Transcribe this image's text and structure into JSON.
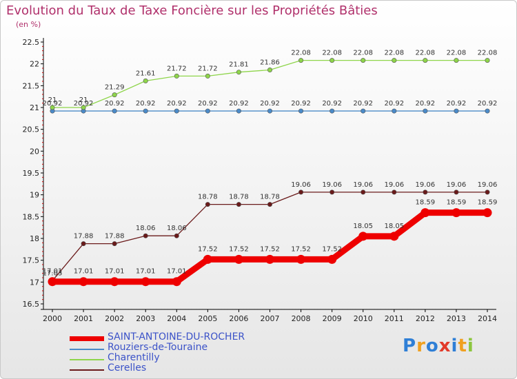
{
  "chart_data": {
    "type": "line",
    "title": "Evolution du Taux de Taxe Foncière sur les Propriétés Bâties",
    "unit_label": "(en %)",
    "x": [
      "2000",
      "2001",
      "2002",
      "2003",
      "2004",
      "2005",
      "2006",
      "2007",
      "2008",
      "2009",
      "2010",
      "2011",
      "2012",
      "2013",
      "2014"
    ],
    "ylim": [
      16.5,
      22.5
    ],
    "yticks": [
      "16.5",
      "17",
      "17.5",
      "18",
      "18.5",
      "19",
      "19.5",
      "20",
      "20.5",
      "21",
      "21.5",
      "22",
      "22.5"
    ],
    "grid": false,
    "legend_position": "bottom-left",
    "series": [
      {
        "name": "SAINT-ANTOINE-DU-ROCHER",
        "color": "#ee0000",
        "values": [
          17.01,
          17.01,
          17.01,
          17.01,
          17.01,
          17.52,
          17.52,
          17.52,
          17.52,
          17.52,
          18.05,
          18.05,
          18.59,
          18.59,
          18.59
        ],
        "labels": [
          "17.01",
          "17.01",
          "17.01",
          "17.01",
          "17.01",
          "17.52",
          "17.52",
          "17.52",
          "17.52",
          "17.52",
          "18.05",
          "18.05",
          "18.59",
          "18.59",
          "18.59"
        ]
      },
      {
        "name": "Rouziers-de-Touraine",
        "color": "#4a8ac8",
        "values": [
          20.92,
          20.92,
          20.92,
          20.92,
          20.92,
          20.92,
          20.92,
          20.92,
          20.92,
          20.92,
          20.92,
          20.92,
          20.92,
          20.92,
          20.92
        ],
        "labels": [
          "20.92",
          "20.92",
          "20.92",
          "20.92",
          "20.92",
          "20.92",
          "20.92",
          "20.92",
          "20.92",
          "20.92",
          "20.92",
          "20.92",
          "20.92",
          "20.92",
          "20.92"
        ]
      },
      {
        "name": "Charentilly",
        "color": "#8ed54a",
        "values": [
          21,
          21,
          21.29,
          21.61,
          21.72,
          21.72,
          21.81,
          21.86,
          22.08,
          22.08,
          22.08,
          22.08,
          22.08,
          22.08,
          22.08
        ],
        "labels": [
          "21",
          "21",
          "21.29",
          "21.61",
          "21.72",
          "21.72",
          "21.81",
          "21.86",
          "22.08",
          "22.08",
          "22.08",
          "22.08",
          "22.08",
          "22.08",
          "22.08"
        ]
      },
      {
        "name": "Cerelles",
        "color": "#6a1a1a",
        "values": [
          17.03,
          17.88,
          17.88,
          18.06,
          18.06,
          18.78,
          18.78,
          18.78,
          19.06,
          19.06,
          19.06,
          19.06,
          19.06,
          19.06,
          19.06
        ],
        "labels": [
          "17.03",
          "17.88",
          "17.88",
          "18.06",
          "18.06",
          "18.78",
          "18.78",
          "18.78",
          "19.06",
          "19.06",
          "19.06",
          "19.06",
          "19.06",
          "19.06",
          "19.06"
        ]
      }
    ]
  },
  "logo": {
    "text": "Proxiti",
    "colors": [
      "#2f7fd6",
      "#f0a020",
      "#2f7fd6",
      "#e23a2a",
      "#2f7fd6",
      "#f0a020",
      "#8cc63e"
    ]
  }
}
